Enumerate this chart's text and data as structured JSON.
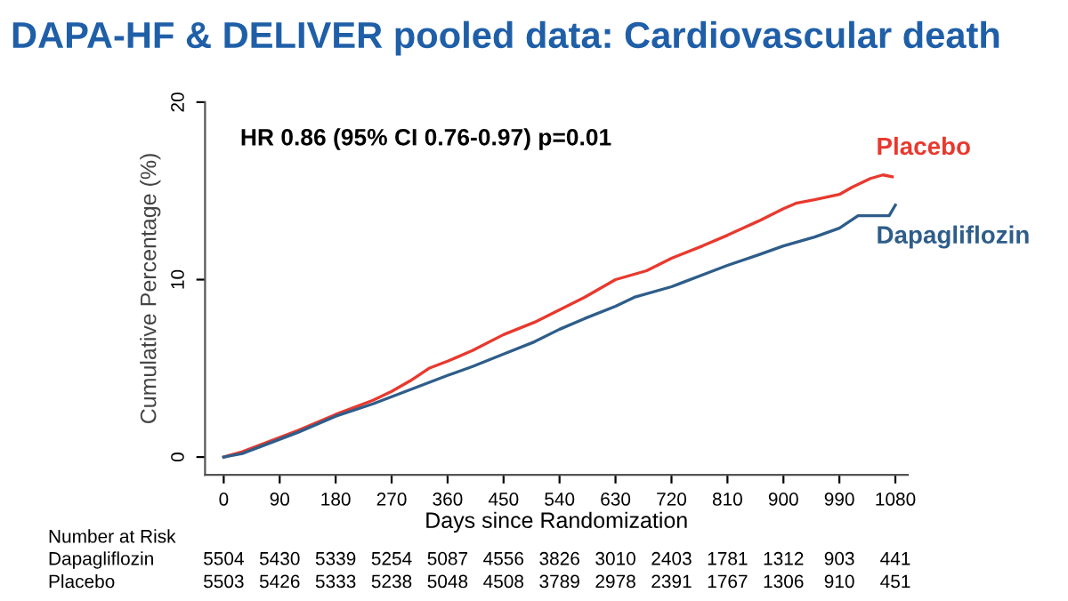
{
  "chart_data": {
    "type": "line",
    "title": "DAPA-HF & DELIVER pooled data: Cardiovascular death",
    "xlabel": "Days since Randomization",
    "ylabel": "Cumulative Percentage (%)",
    "xlim": [
      -30,
      1100
    ],
    "ylim": [
      -1,
      20
    ],
    "xticks": [
      0,
      90,
      180,
      270,
      360,
      450,
      540,
      630,
      720,
      810,
      900,
      990,
      1080
    ],
    "yticks": [
      0,
      10,
      20
    ],
    "grid": false,
    "legend": false,
    "series": [
      {
        "name": "Placebo",
        "color": "#e8392e",
        "x": [
          0,
          30,
          60,
          90,
          120,
          180,
          240,
          270,
          300,
          330,
          360,
          400,
          450,
          500,
          540,
          580,
          630,
          680,
          720,
          770,
          810,
          860,
          900,
          920,
          950,
          990,
          1010,
          1040,
          1060,
          1075
        ],
        "values": [
          0,
          0.3,
          0.7,
          1.1,
          1.5,
          2.4,
          3.2,
          3.7,
          4.3,
          5.0,
          5.4,
          6.0,
          6.9,
          7.6,
          8.3,
          9.0,
          10.0,
          10.5,
          11.2,
          11.9,
          12.5,
          13.3,
          14.0,
          14.3,
          14.5,
          14.8,
          15.2,
          15.7,
          15.9,
          15.8
        ]
      },
      {
        "name": "Dapagliflozin",
        "color": "#2e5d8a",
        "x": [
          0,
          30,
          60,
          90,
          120,
          180,
          240,
          270,
          300,
          360,
          400,
          450,
          500,
          540,
          580,
          630,
          660,
          720,
          780,
          810,
          860,
          900,
          950,
          990,
          1020,
          1070,
          1080
        ],
        "values": [
          0,
          0.2,
          0.6,
          1.0,
          1.4,
          2.3,
          3.0,
          3.4,
          3.8,
          4.6,
          5.1,
          5.8,
          6.5,
          7.2,
          7.8,
          8.5,
          9.0,
          9.6,
          10.4,
          10.8,
          11.4,
          11.9,
          12.4,
          12.9,
          13.6,
          13.6,
          14.2
        ]
      }
    ],
    "annotations": [
      {
        "text": "HR 0.86 (95% CI 0.76-0.97) p=0.01"
      },
      "Number at Risk",
      "Dapagliflozin",
      "5504",
      "5430",
      "5339",
      "5254",
      "5087",
      "4556",
      "3826",
      "3010",
      "2403",
      "1781",
      "1312",
      "903",
      "441",
      "Placebo",
      "5503",
      "5426",
      "5333",
      "5238",
      "5048",
      "4508",
      "3789",
      "2978",
      "2391",
      "1767",
      "1306",
      "910",
      "451"
    ]
  }
}
